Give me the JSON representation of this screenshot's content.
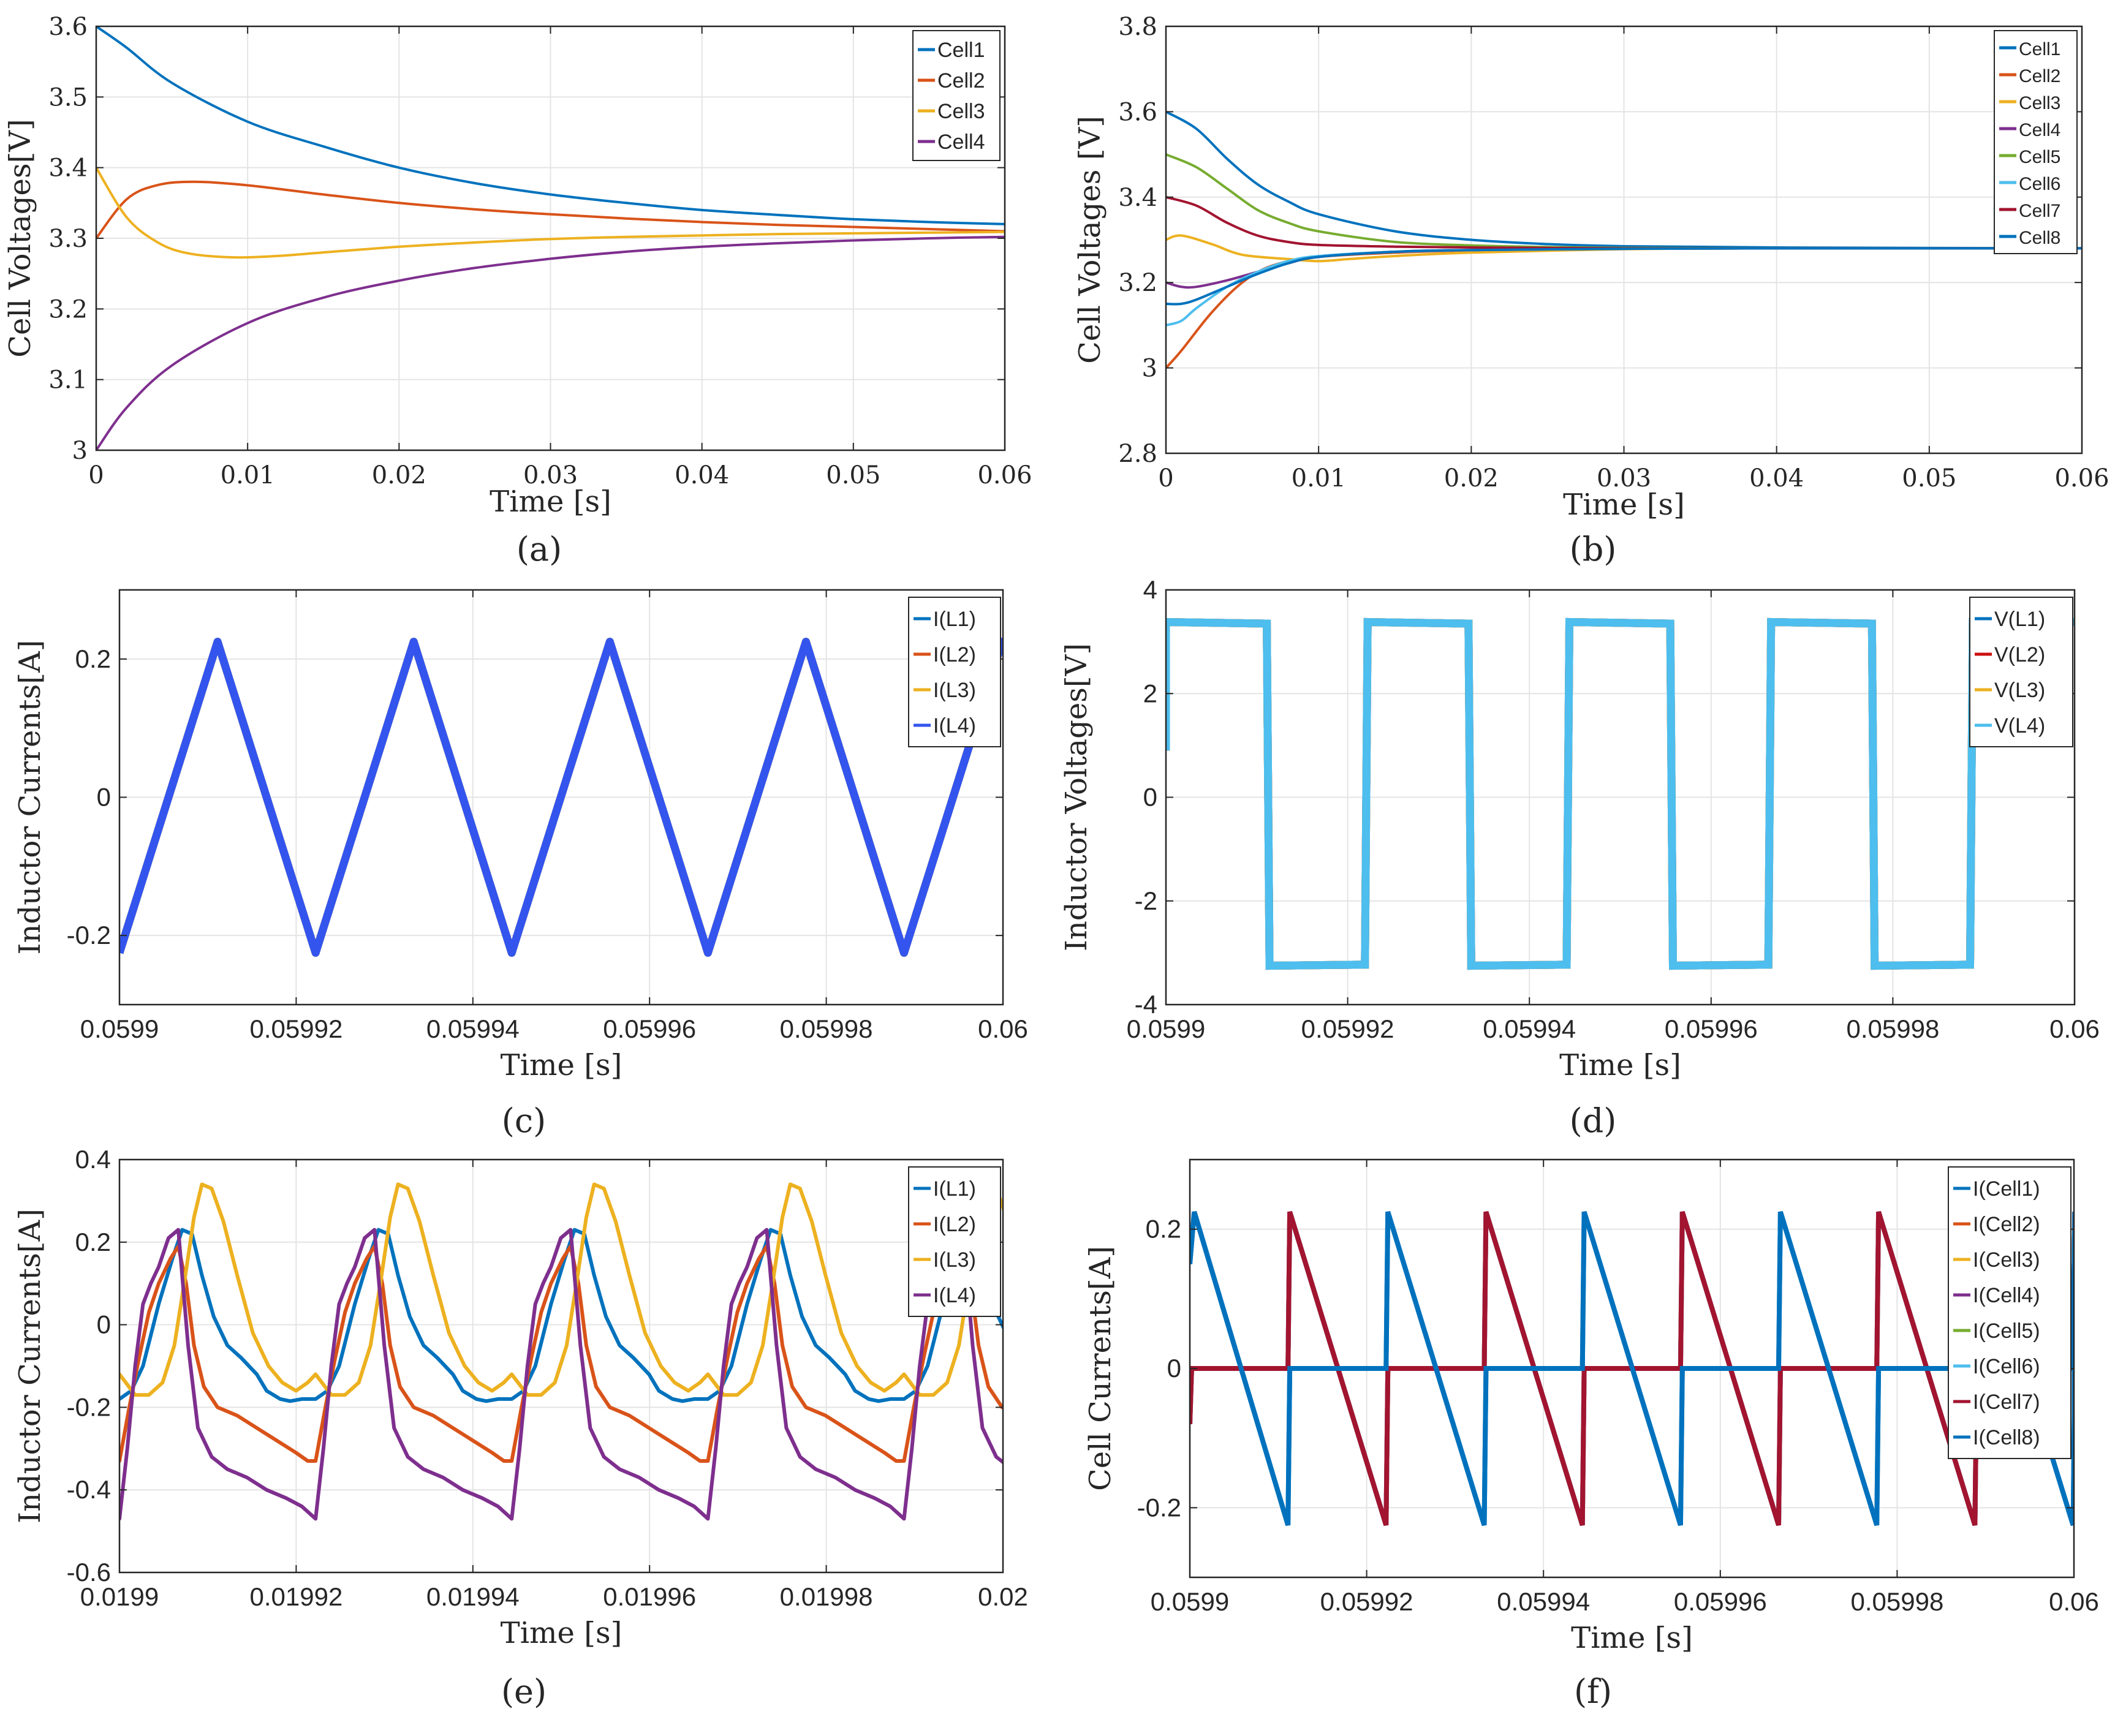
{
  "chart_data": [
    {
      "id": "a",
      "type": "line",
      "caption": "(a)",
      "xlabel": "Time [s]",
      "ylabel": "Cell Voltages[V]",
      "xlim": [
        0,
        0.06
      ],
      "ylim": [
        3,
        3.6
      ],
      "xticks": [
        0,
        0.01,
        0.02,
        0.03,
        0.04,
        0.05,
        0.06
      ],
      "xtick_labels": [
        "0",
        "0.01",
        "0.02",
        "0.03",
        "0.04",
        "0.05",
        "0.06"
      ],
      "yticks": [
        3,
        3.1,
        3.2,
        3.3,
        3.4,
        3.5,
        3.6
      ],
      "ytick_labels": [
        "3",
        "3.1",
        "3.2",
        "3.3",
        "3.4",
        "3.5",
        "3.6"
      ],
      "grid": true,
      "legend": "top-right",
      "series": [
        {
          "name": "Cell1",
          "color": "#0072bd",
          "x": [
            0,
            0.002,
            0.005,
            0.01,
            0.015,
            0.02,
            0.025,
            0.03,
            0.035,
            0.04,
            0.045,
            0.05,
            0.055,
            0.06
          ],
          "y": [
            3.6,
            3.57,
            3.52,
            3.465,
            3.43,
            3.4,
            3.378,
            3.362,
            3.35,
            3.34,
            3.333,
            3.327,
            3.323,
            3.32
          ]
        },
        {
          "name": "Cell2",
          "color": "#d95319",
          "x": [
            0,
            0.002,
            0.004,
            0.0065,
            0.01,
            0.015,
            0.02,
            0.025,
            0.03,
            0.035,
            0.04,
            0.045,
            0.05,
            0.055,
            0.06
          ],
          "y": [
            3.3,
            3.355,
            3.375,
            3.38,
            3.375,
            3.362,
            3.35,
            3.341,
            3.334,
            3.328,
            3.323,
            3.319,
            3.316,
            3.313,
            3.31
          ]
        },
        {
          "name": "Cell3",
          "color": "#edb120",
          "x": [
            0,
            0.002,
            0.004,
            0.006,
            0.009,
            0.012,
            0.015,
            0.02,
            0.025,
            0.03,
            0.035,
            0.04,
            0.045,
            0.05,
            0.055,
            0.06
          ],
          "y": [
            3.4,
            3.33,
            3.295,
            3.279,
            3.273,
            3.275,
            3.28,
            3.288,
            3.294,
            3.299,
            3.302,
            3.304,
            3.306,
            3.307,
            3.308,
            3.309
          ]
        },
        {
          "name": "Cell4",
          "color": "#7e2f8e",
          "x": [
            0,
            0.002,
            0.005,
            0.01,
            0.015,
            0.02,
            0.025,
            0.03,
            0.035,
            0.04,
            0.045,
            0.05,
            0.055,
            0.06
          ],
          "y": [
            3,
            3.06,
            3.12,
            3.18,
            3.216,
            3.24,
            3.258,
            3.271,
            3.281,
            3.288,
            3.293,
            3.297,
            3.3,
            3.302
          ]
        }
      ]
    },
    {
      "id": "b",
      "type": "line",
      "caption": "(b)",
      "xlabel": "Time [s]",
      "ylabel": "Cell Voltages [V]",
      "xlim": [
        0,
        0.06
      ],
      "ylim": [
        2.8,
        3.8
      ],
      "xticks": [
        0,
        0.01,
        0.02,
        0.03,
        0.04,
        0.05,
        0.06
      ],
      "xtick_labels": [
        "0",
        "0.01",
        "0.02",
        "0.03",
        "0.04",
        "0.05",
        "0.06"
      ],
      "yticks": [
        2.8,
        3,
        3.2,
        3.4,
        3.6,
        3.8
      ],
      "ytick_labels": [
        "2.8",
        "3",
        "3.2",
        "3.4",
        "3.6",
        "3.8"
      ],
      "grid": true,
      "legend": "top-right",
      "series": [
        {
          "name": "Cell1",
          "color": "#0072bd",
          "x": [
            0,
            0.002,
            0.004,
            0.006,
            0.008,
            0.01,
            0.015,
            0.02,
            0.025,
            0.03,
            0.04,
            0.06
          ],
          "y": [
            3.6,
            3.56,
            3.49,
            3.43,
            3.39,
            3.36,
            3.32,
            3.3,
            3.29,
            3.285,
            3.282,
            3.28
          ]
        },
        {
          "name": "Cell2",
          "color": "#d95319",
          "x": [
            0,
            0.001,
            0.003,
            0.005,
            0.007,
            0.01,
            0.015,
            0.02,
            0.03,
            0.04,
            0.06
          ],
          "y": [
            3,
            3.04,
            3.13,
            3.2,
            3.24,
            3.26,
            3.27,
            3.275,
            3.279,
            3.28,
            3.28
          ]
        },
        {
          "name": "Cell3",
          "color": "#edb120",
          "x": [
            0,
            0.001,
            0.003,
            0.005,
            0.008,
            0.01,
            0.012,
            0.015,
            0.02,
            0.03,
            0.04,
            0.06
          ],
          "y": [
            3.3,
            3.31,
            3.29,
            3.265,
            3.255,
            3.25,
            3.255,
            3.262,
            3.27,
            3.278,
            3.28,
            3.28
          ]
        },
        {
          "name": "Cell4",
          "color": "#7e2f8e",
          "x": [
            0,
            0.001,
            0.002,
            0.004,
            0.006,
            0.008,
            0.01,
            0.015,
            0.02,
            0.03,
            0.04,
            0.06
          ],
          "y": [
            3.2,
            3.19,
            3.19,
            3.205,
            3.225,
            3.245,
            3.26,
            3.272,
            3.276,
            3.279,
            3.28,
            3.28
          ]
        },
        {
          "name": "Cell5",
          "color": "#77ac30",
          "x": [
            0,
            0.002,
            0.004,
            0.006,
            0.008,
            0.01,
            0.015,
            0.02,
            0.025,
            0.03,
            0.04,
            0.06
          ],
          "y": [
            3.5,
            3.47,
            3.42,
            3.37,
            3.34,
            3.32,
            3.295,
            3.287,
            3.283,
            3.281,
            3.28,
            3.28
          ]
        },
        {
          "name": "Cell6",
          "color": "#4dbeee",
          "x": [
            0,
            0.001,
            0.002,
            0.004,
            0.006,
            0.008,
            0.01,
            0.015,
            0.02,
            0.03,
            0.04,
            0.06
          ],
          "y": [
            3.1,
            3.11,
            3.14,
            3.19,
            3.225,
            3.25,
            3.262,
            3.272,
            3.276,
            3.279,
            3.28,
            3.28
          ]
        },
        {
          "name": "Cell7",
          "color": "#a2142f",
          "x": [
            0,
            0.002,
            0.004,
            0.006,
            0.008,
            0.01,
            0.015,
            0.02,
            0.025,
            0.03,
            0.04,
            0.06
          ],
          "y": [
            3.4,
            3.38,
            3.34,
            3.31,
            3.295,
            3.288,
            3.284,
            3.282,
            3.281,
            3.28,
            3.28,
            3.28
          ]
        },
        {
          "name": "Cell8",
          "color": "#0072bd",
          "x": [
            0,
            0.001,
            0.002,
            0.004,
            0.006,
            0.008,
            0.01,
            0.015,
            0.02,
            0.03,
            0.04,
            0.06
          ],
          "y": [
            3.15,
            3.15,
            3.16,
            3.19,
            3.22,
            3.245,
            3.26,
            3.272,
            3.276,
            3.279,
            3.28,
            3.28
          ]
        }
      ]
    },
    {
      "id": "c",
      "type": "line",
      "caption": "(c)",
      "xlabel": "Time [s]",
      "ylabel": "Inductor Currents[A]",
      "xlim": [
        0.0599,
        0.06
      ],
      "ylim": [
        -0.3,
        0.3
      ],
      "xticks": [
        0.0599,
        0.05992,
        0.05994,
        0.05996,
        0.05998,
        0.06
      ],
      "xtick_labels": [
        "0.0599",
        "0.05992",
        "0.05994",
        "0.05996",
        "0.05998",
        "0.06"
      ],
      "yticks": [
        -0.2,
        0,
        0.2
      ],
      "ytick_labels": [
        "-0.2",
        "0",
        "0.2"
      ],
      "grid": true,
      "legend": "top-right",
      "period_s": 2.22e-05,
      "series": [
        {
          "name": "I(L1)",
          "color": "#0072bd"
        },
        {
          "name": "I(L2)",
          "color": "#d95319"
        },
        {
          "name": "I(L3)",
          "color": "#edb120"
        },
        {
          "name": "I(L4)",
          "color": "#3355ee"
        }
      ]
    },
    {
      "id": "d",
      "type": "line",
      "caption": "(d)",
      "xlabel": "Time [s]",
      "ylabel": "Inductor Voltages[V]",
      "xlim": [
        0.0599,
        0.06
      ],
      "ylim": [
        -4,
        4
      ],
      "xticks": [
        0.0599,
        0.05992,
        0.05994,
        0.05996,
        0.05998,
        0.06
      ],
      "xtick_labels": [
        "0.0599",
        "0.05992",
        "0.05994",
        "0.05996",
        "0.05998",
        "0.06"
      ],
      "yticks": [
        -4,
        -2,
        0,
        2,
        4
      ],
      "ytick_labels": [
        "-4",
        "-2",
        "0",
        "2",
        "4"
      ],
      "grid": true,
      "legend": "top-right",
      "high_v": 3.38,
      "low_v": -3.25,
      "series": [
        {
          "name": "V(L1)",
          "color": "#0072bd"
        },
        {
          "name": "V(L2)",
          "color": "#cc1111"
        },
        {
          "name": "V(L3)",
          "color": "#edb120"
        },
        {
          "name": "V(L4)",
          "color": "#4dbeee"
        }
      ]
    },
    {
      "id": "e",
      "type": "line",
      "caption": "(e)",
      "xlabel": "Time [s]",
      "ylabel": "Inductor Currents[A]",
      "xlim": [
        0.0199,
        0.02
      ],
      "ylim": [
        -0.6,
        0.4
      ],
      "xticks": [
        0.0199,
        0.01992,
        0.01994,
        0.01996,
        0.01998,
        0.02
      ],
      "xtick_labels": [
        "0.0199",
        "0.01992",
        "0.01994",
        "0.01996",
        "0.01998",
        "0.02"
      ],
      "yticks": [
        -0.6,
        -0.4,
        -0.2,
        0,
        0.2,
        0.4
      ],
      "ytick_labels": [
        "-0.6",
        "-0.4",
        "-0.2",
        "0",
        "0.2",
        "0.4"
      ],
      "grid": true,
      "legend": "top-right",
      "period_s": 2.22e-05,
      "series": [
        {
          "name": "I(L1)",
          "color": "#0072bd",
          "phase": [
            0,
            0.06,
            0.12,
            0.2,
            0.27,
            0.32,
            0.37,
            0.42,
            0.48,
            0.55,
            0.62,
            0.7,
            0.75,
            0.82,
            0.87,
            0.93,
            1
          ],
          "value": [
            -0.18,
            -0.16,
            -0.1,
            0.05,
            0.16,
            0.23,
            0.22,
            0.12,
            0.02,
            -0.05,
            -0.08,
            -0.12,
            -0.16,
            -0.18,
            -0.185,
            -0.18,
            -0.18
          ]
        },
        {
          "name": "I(L2)",
          "color": "#d95319",
          "phase": [
            0,
            0.05,
            0.1,
            0.15,
            0.2,
            0.26,
            0.3,
            0.34,
            0.38,
            0.43,
            0.5,
            0.6,
            0.7,
            0.8,
            0.9,
            0.96,
            1
          ],
          "value": [
            -0.33,
            -0.2,
            -0.08,
            0.03,
            0.1,
            0.16,
            0.19,
            0.1,
            -0.05,
            -0.15,
            -0.2,
            -0.22,
            -0.25,
            -0.28,
            -0.31,
            -0.33,
            -0.33
          ]
        },
        {
          "name": "I(L3)",
          "color": "#edb120",
          "phase": [
            0,
            0.08,
            0.15,
            0.22,
            0.28,
            0.33,
            0.38,
            0.42,
            0.47,
            0.53,
            0.6,
            0.68,
            0.76,
            0.83,
            0.9,
            0.96,
            1
          ],
          "value": [
            -0.12,
            -0.17,
            -0.17,
            -0.14,
            -0.05,
            0.1,
            0.26,
            0.34,
            0.33,
            0.25,
            0.12,
            -0.02,
            -0.1,
            -0.14,
            -0.16,
            -0.14,
            -0.12
          ]
        },
        {
          "name": "I(L4)",
          "color": "#7e2f8e",
          "phase": [
            0,
            0.04,
            0.08,
            0.12,
            0.16,
            0.2,
            0.25,
            0.3,
            0.35,
            0.4,
            0.47,
            0.55,
            0.65,
            0.75,
            0.85,
            0.93,
            1
          ],
          "value": [
            -0.47,
            -0.3,
            -0.1,
            0.05,
            0.1,
            0.14,
            0.21,
            0.23,
            -0.05,
            -0.25,
            -0.32,
            -0.35,
            -0.37,
            -0.4,
            -0.42,
            -0.44,
            -0.47
          ]
        }
      ]
    },
    {
      "id": "f",
      "type": "line",
      "caption": "(f)",
      "xlabel": "Time [s]",
      "ylabel": "Cell Currents[A]",
      "xlim": [
        0.0599,
        0.06
      ],
      "ylim": [
        -0.3,
        0.3
      ],
      "xticks": [
        0.0599,
        0.05992,
        0.05994,
        0.05996,
        0.05998,
        0.06
      ],
      "xtick_labels": [
        "0.0599",
        "0.05992",
        "0.05994",
        "0.05996",
        "0.05998",
        "0.06"
      ],
      "yticks": [
        -0.2,
        0,
        0.2
      ],
      "ytick_labels": [
        "-0.2",
        "0",
        "0.2"
      ],
      "grid": true,
      "legend": "top-right",
      "period_s": 2.22e-05,
      "peak": 0.225,
      "series": [
        {
          "name": "I(Cell1)",
          "color": "#0072bd"
        },
        {
          "name": "I(Cell2)",
          "color": "#d95319"
        },
        {
          "name": "I(Cell3)",
          "color": "#edb120"
        },
        {
          "name": "I(Cell4)",
          "color": "#7e2f8e"
        },
        {
          "name": "I(Cell5)",
          "color": "#77ac30"
        },
        {
          "name": "I(Cell6)",
          "color": "#4dbeee"
        },
        {
          "name": "I(Cell7)",
          "color": "#a2142f"
        },
        {
          "name": "I(Cell8)",
          "color": "#0072bd"
        }
      ]
    }
  ]
}
